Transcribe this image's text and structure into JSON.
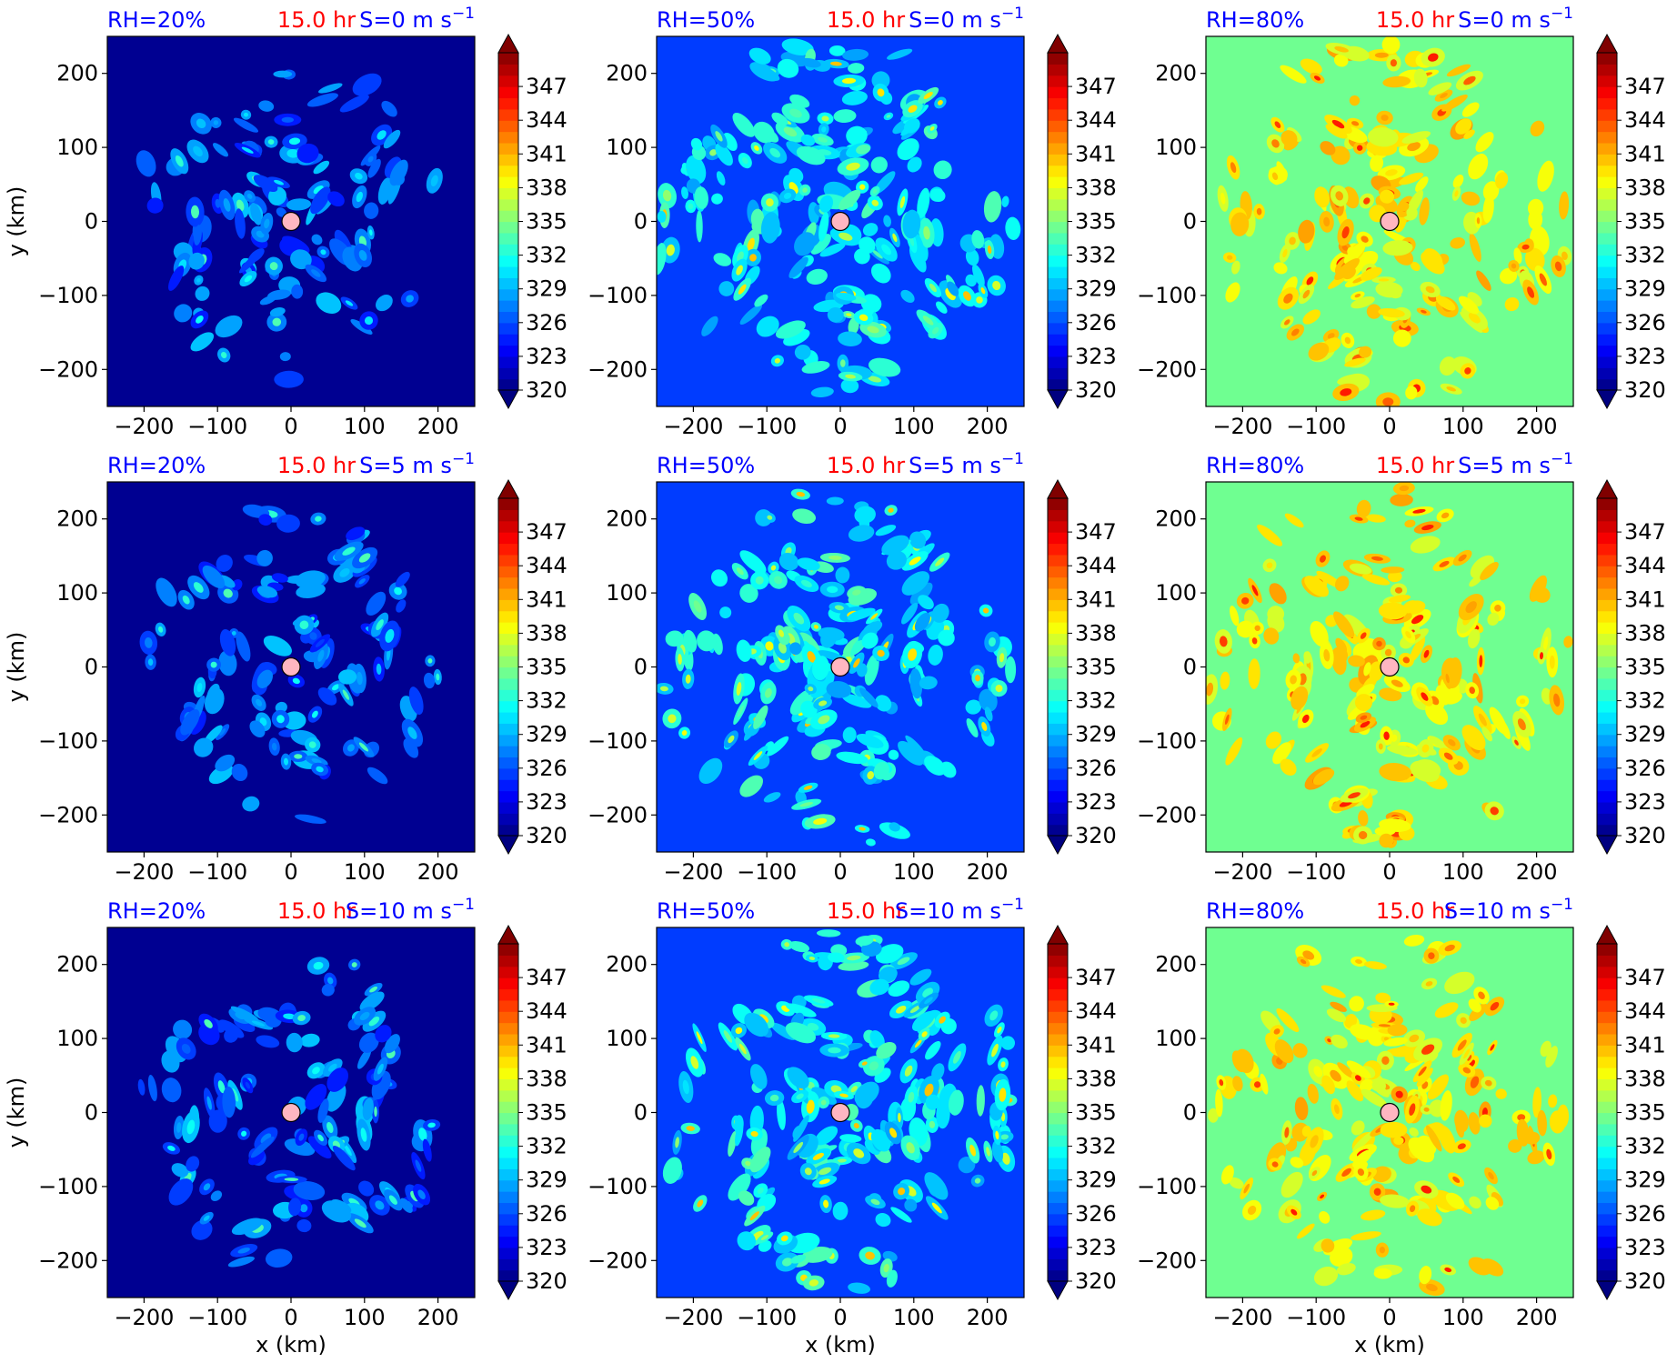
{
  "figure": {
    "time_label": "15.0 hr",
    "xlabel": "x (km)",
    "ylabel": "y (km)",
    "colors": {
      "rh_text": "#0000ff",
      "time_text": "#ff0000",
      "center_marker": "#ffb6c1"
    }
  },
  "chart_data": {
    "type": "heatmap",
    "layout": "3x3 panel grid of contour maps",
    "axes": {
      "xlabel": "x (km)",
      "ylabel": "y (km)",
      "xlim": [
        -250,
        250
      ],
      "ylim": [
        -250,
        250
      ],
      "xticks": [
        -200,
        -100,
        0,
        100,
        200
      ],
      "yticks": [
        -200,
        -100,
        0,
        100,
        200
      ]
    },
    "colorbar": {
      "colormap": "jet",
      "min": 320,
      "max": 350,
      "tick_labels": [
        320,
        323,
        326,
        329,
        332,
        335,
        338,
        341,
        344,
        347
      ],
      "extend": "both"
    },
    "panels": [
      {
        "row": 0,
        "col": 0,
        "rh_label": "RH=20%",
        "time_label": "15.0 hr",
        "shear_value": "0",
        "background_value": 320.5,
        "feature_mean": 328,
        "feature_max": 334,
        "n_features": 130
      },
      {
        "row": 0,
        "col": 1,
        "rh_label": "RH=50%",
        "time_label": "15.0 hr",
        "shear_value": "0",
        "background_value": 325.5,
        "feature_mean": 332,
        "feature_max": 341,
        "n_features": 220
      },
      {
        "row": 0,
        "col": 2,
        "rh_label": "RH=80%",
        "time_label": "15.0 hr",
        "shear_value": "0",
        "background_value": 334,
        "feature_mean": 340,
        "feature_max": 346,
        "n_features": 210
      },
      {
        "row": 1,
        "col": 0,
        "rh_label": "RH=20%",
        "time_label": "15.0 hr",
        "shear_value": "5",
        "background_value": 320.5,
        "feature_mean": 328,
        "feature_max": 334,
        "n_features": 130
      },
      {
        "row": 1,
        "col": 1,
        "rh_label": "RH=50%",
        "time_label": "15.0 hr",
        "shear_value": "5",
        "background_value": 325.5,
        "feature_mean": 332,
        "feature_max": 341,
        "n_features": 220
      },
      {
        "row": 1,
        "col": 2,
        "rh_label": "RH=80%",
        "time_label": "15.0 hr",
        "shear_value": "5",
        "background_value": 334,
        "feature_mean": 340,
        "feature_max": 346,
        "n_features": 210
      },
      {
        "row": 2,
        "col": 0,
        "rh_label": "RH=20%",
        "time_label": "15.0 hr",
        "shear_value": "10",
        "background_value": 320.5,
        "feature_mean": 328,
        "feature_max": 334,
        "n_features": 130
      },
      {
        "row": 2,
        "col": 1,
        "rh_label": "RH=50%",
        "time_label": "15.0 hr",
        "shear_value": "10",
        "background_value": 325.5,
        "feature_mean": 332,
        "feature_max": 341,
        "n_features": 220
      },
      {
        "row": 2,
        "col": 2,
        "rh_label": "RH=80%",
        "time_label": "15.0 hr",
        "shear_value": "10",
        "background_value": 334,
        "feature_mean": 340,
        "feature_max": 346,
        "n_features": 210
      }
    ],
    "center_marker": {
      "x": 0,
      "y": 0
    }
  }
}
